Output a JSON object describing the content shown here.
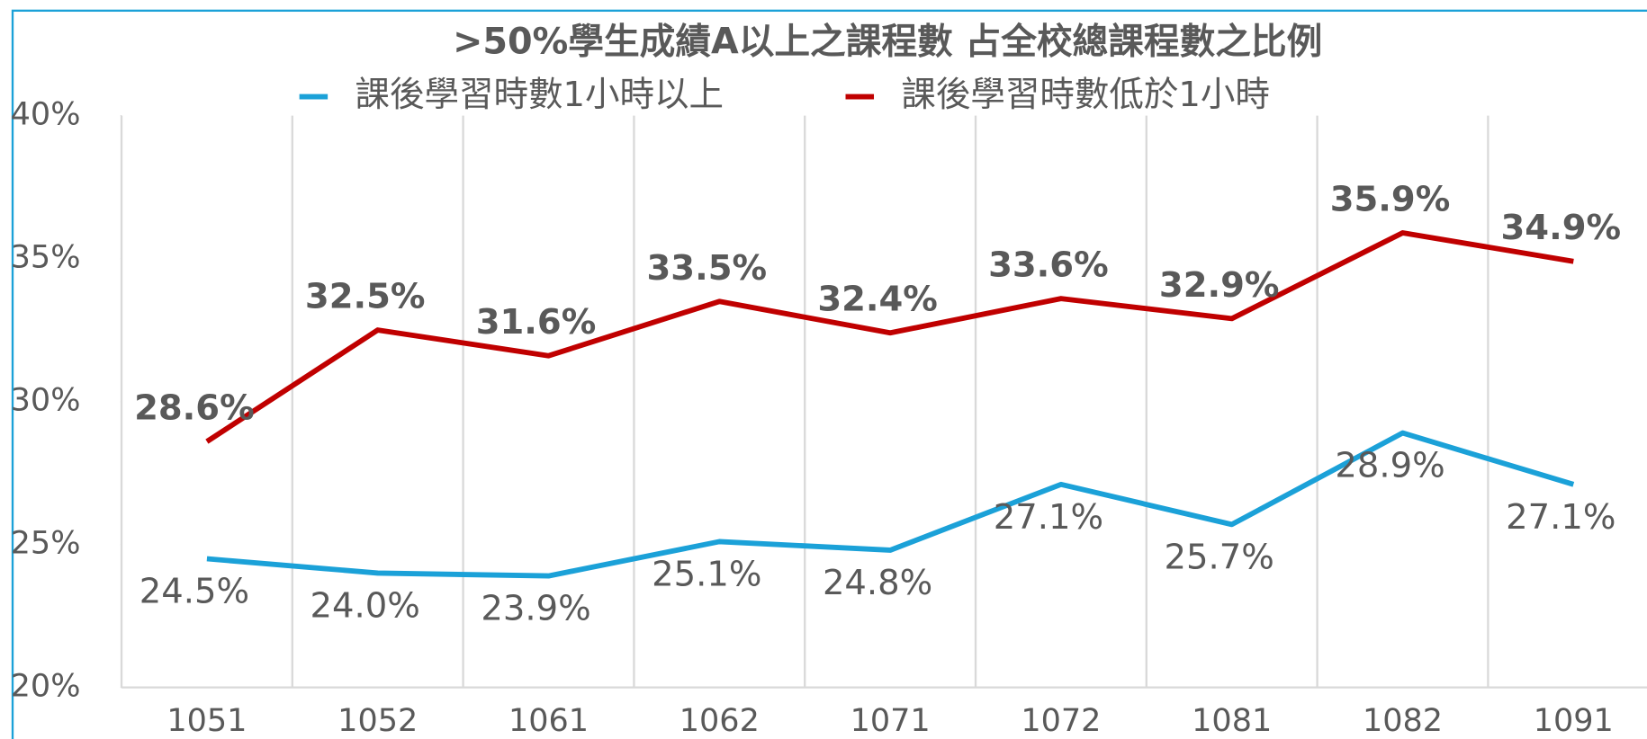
{
  "chart_data": {
    "type": "line",
    "title": ">50%學生成績A以上之課程數 占全校總課程數之比例",
    "categories": [
      "1051",
      "1052",
      "1061",
      "1062",
      "1071",
      "1072",
      "1081",
      "1082",
      "1091"
    ],
    "series": [
      {
        "name": "課後學習時數1小時以上",
        "color": "#1ba1d8",
        "values": [
          24.5,
          24.0,
          23.9,
          25.1,
          24.8,
          27.1,
          25.7,
          28.9,
          27.1
        ],
        "value_labels": [
          "24.5%",
          "24.0%",
          "23.9%",
          "25.1%",
          "24.8%",
          "27.1%",
          "25.7%",
          "28.9%",
          "27.1%"
        ]
      },
      {
        "name": "課後學習時數低於1小時",
        "color": "#c00000",
        "values": [
          28.6,
          32.5,
          31.6,
          33.5,
          32.4,
          33.6,
          32.9,
          35.9,
          34.9
        ],
        "value_labels": [
          "28.6%",
          "32.5%",
          "31.6%",
          "33.5%",
          "32.4%",
          "33.6%",
          "32.9%",
          "35.9%",
          "34.9%"
        ]
      }
    ],
    "ylim": [
      20,
      40
    ],
    "yticks": [
      {
        "value": 20,
        "label": "20%"
      },
      {
        "value": 25,
        "label": "25%"
      },
      {
        "value": 30,
        "label": "30%"
      },
      {
        "value": 35,
        "label": "35%"
      },
      {
        "value": 40,
        "label": "40%"
      }
    ],
    "legend": "top"
  }
}
